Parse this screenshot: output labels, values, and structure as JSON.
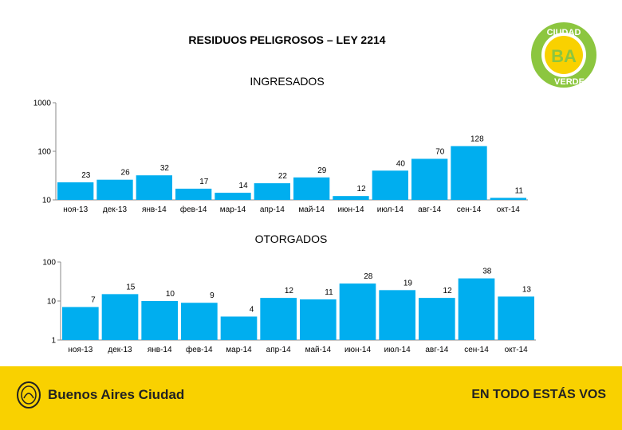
{
  "page": {
    "title": "RESIDUOS PELIGROSOS – LEY 2214"
  },
  "badge": {
    "top_text": "CIUDAD",
    "center_text": "BA",
    "bottom_text": "VERDE",
    "colors": {
      "ring": "#8cc63f",
      "center": "#f9d100",
      "text": "#ffffff"
    }
  },
  "footer": {
    "logo_text": "Buenos Aires Ciudad",
    "slogan": "EN TODO ESTÁS VOS",
    "background": "#f9d100"
  },
  "chart_data": [
    {
      "type": "bar",
      "title": "INGRESADOS",
      "scale": "log",
      "ylim": [
        10,
        1000
      ],
      "yticks": [
        "1000",
        "100",
        "10"
      ],
      "categories": [
        "ноя-13",
        "дек-13",
        "янв-14",
        "фев-14",
        "мар-14",
        "апр-14",
        "май-14",
        "июн-14",
        "июл-14",
        "авг-14",
        "сен-14",
        "окт-14"
      ],
      "values": [
        23,
        26,
        32,
        17,
        14,
        22,
        29,
        12,
        40,
        70,
        128,
        11
      ],
      "labels": [
        "23",
        "26",
        "32",
        "17",
        "14",
        "22",
        "29",
        "12",
        "40",
        "70",
        "128",
        "11"
      ],
      "color": "#00aeef"
    },
    {
      "type": "bar",
      "title": "OTORGADOS",
      "scale": "log",
      "ylim": [
        1,
        100
      ],
      "yticks": [
        "100",
        "10",
        "1"
      ],
      "categories": [
        "ноя-13",
        "дек-13",
        "янв-14",
        "фев-14",
        "мар-14",
        "апр-14",
        "май-14",
        "июн-14",
        "июл-14",
        "авг-14",
        "сен-14",
        "окт-14"
      ],
      "values": [
        7,
        15,
        10,
        9,
        4,
        12,
        11,
        28,
        19,
        12,
        38,
        13
      ],
      "labels": [
        "7",
        "15",
        "10",
        "9",
        "4",
        "12",
        "11",
        "28",
        "19",
        "12",
        "38",
        "13"
      ],
      "color": "#00aeef"
    }
  ]
}
